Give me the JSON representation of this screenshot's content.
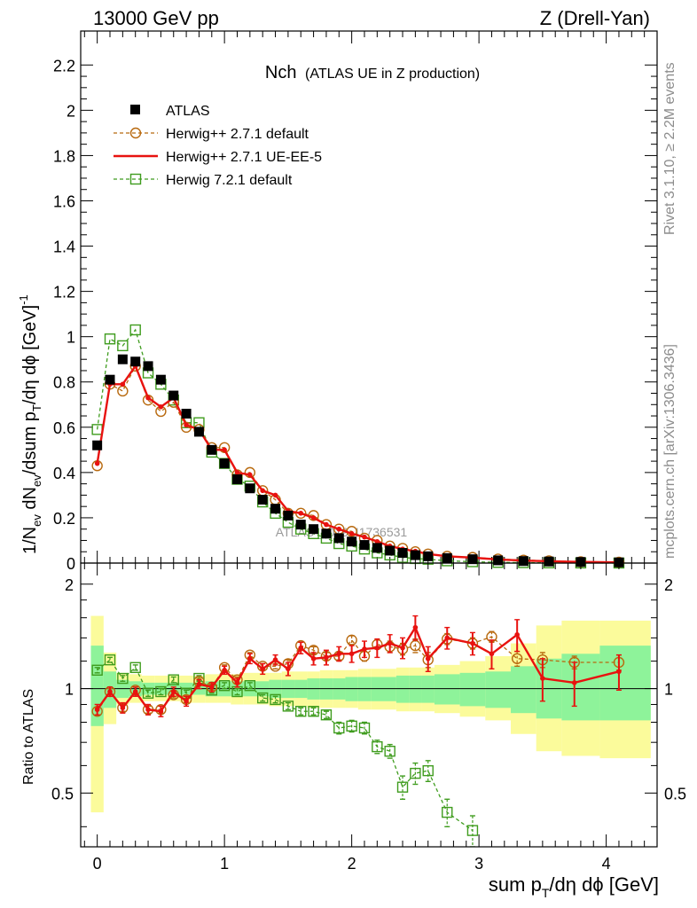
{
  "header": {
    "left": "13000 GeV pp",
    "right": "Z (Drell-Yan)"
  },
  "side_labels": {
    "rivet": "Rivet 3.1.10, ≥ 2.2M events",
    "mcplots": "mcplots.cern.ch [arXiv:1306.3436]"
  },
  "watermark": "ATLAS_2019_I1736531",
  "chart_data": [
    {
      "type": "scatter",
      "panel": "main",
      "title_main": "Nch",
      "title_sub": "(ATLAS UE in Z production)",
      "ylabel": "1/N_ev dN_ev/dsum p_T/dη dϕ [GeV]^-1",
      "xlim": [
        -0.13,
        4.4
      ],
      "ylim": [
        0,
        2.35
      ],
      "yticks": [
        0,
        0.2,
        0.4,
        0.6,
        0.8,
        1,
        1.2,
        1.4,
        1.6,
        1.8,
        2,
        2.2
      ],
      "ytick_labels": [
        "0",
        "0.2",
        "0.4",
        "0.6",
        "0.8",
        "1",
        "1.2",
        "1.4",
        "1.6",
        "1.8",
        "2",
        "2.2"
      ],
      "legend_position": "top-left",
      "series": [
        {
          "name": "ATLAS",
          "color": "#000000",
          "marker": "filled-square",
          "x": [
            0.0,
            0.1,
            0.2,
            0.3,
            0.4,
            0.5,
            0.6,
            0.7,
            0.8,
            0.9,
            1.0,
            1.1,
            1.2,
            1.3,
            1.4,
            1.5,
            1.6,
            1.7,
            1.8,
            1.9,
            2.0,
            2.1,
            2.2,
            2.3,
            2.4,
            2.5,
            2.6,
            2.75,
            2.95,
            3.15,
            3.35,
            3.55,
            3.8,
            4.1
          ],
          "y": [
            0.52,
            0.81,
            0.9,
            0.89,
            0.87,
            0.81,
            0.74,
            0.66,
            0.58,
            0.5,
            0.44,
            0.37,
            0.33,
            0.28,
            0.24,
            0.21,
            0.17,
            0.15,
            0.13,
            0.11,
            0.095,
            0.08,
            0.067,
            0.055,
            0.045,
            0.035,
            0.03,
            0.022,
            0.017,
            0.012,
            0.009,
            0.007,
            0.005,
            0.003
          ]
        },
        {
          "name": "Herwig++ 2.7.1 default",
          "color": "#b8690e",
          "marker": "open-circle",
          "line": "dashed",
          "x": [
            0.0,
            0.1,
            0.2,
            0.3,
            0.4,
            0.5,
            0.6,
            0.7,
            0.8,
            0.9,
            1.0,
            1.1,
            1.2,
            1.3,
            1.4,
            1.5,
            1.6,
            1.7,
            1.8,
            1.9,
            2.0,
            2.1,
            2.2,
            2.3,
            2.4,
            2.5,
            2.6,
            2.75,
            2.95,
            3.15,
            3.35,
            3.55,
            3.8,
            4.1
          ],
          "y": [
            0.43,
            0.79,
            0.76,
            0.87,
            0.72,
            0.67,
            0.71,
            0.6,
            0.59,
            0.51,
            0.51,
            0.39,
            0.4,
            0.32,
            0.28,
            0.22,
            0.22,
            0.21,
            0.17,
            0.15,
            0.14,
            0.11,
            0.1,
            0.075,
            0.065,
            0.05,
            0.04,
            0.03,
            0.025,
            0.018,
            0.013,
            0.01,
            0.006,
            0.004
          ]
        },
        {
          "name": "Herwig++ 2.7.1 UE-EE-5",
          "color": "#e8120f",
          "marker": "dot",
          "line": "solid",
          "x": [
            0.0,
            0.1,
            0.2,
            0.3,
            0.4,
            0.5,
            0.6,
            0.7,
            0.8,
            0.9,
            1.0,
            1.1,
            1.2,
            1.3,
            1.4,
            1.5,
            1.6,
            1.7,
            1.8,
            1.9,
            2.0,
            2.1,
            2.2,
            2.3,
            2.4,
            2.5,
            2.6,
            2.75,
            2.95,
            3.15,
            3.35,
            3.55,
            3.8,
            4.1
          ],
          "y": [
            0.44,
            0.79,
            0.79,
            0.87,
            0.73,
            0.69,
            0.73,
            0.61,
            0.59,
            0.5,
            0.5,
            0.4,
            0.39,
            0.32,
            0.3,
            0.23,
            0.22,
            0.2,
            0.17,
            0.15,
            0.13,
            0.115,
            0.095,
            0.075,
            0.062,
            0.052,
            0.04,
            0.03,
            0.024,
            0.016,
            0.011,
            0.008,
            0.005,
            0.003
          ]
        },
        {
          "name": "Herwig 7.2.1 default",
          "color": "#3f9c1e",
          "marker": "open-square",
          "line": "dashed",
          "x": [
            0.0,
            0.1,
            0.2,
            0.3,
            0.4,
            0.5,
            0.6,
            0.7,
            0.8,
            0.9,
            1.0,
            1.1,
            1.2,
            1.3,
            1.4,
            1.5,
            1.6,
            1.7,
            1.8,
            1.9,
            2.0,
            2.1,
            2.2,
            2.3,
            2.4,
            2.5,
            2.6,
            2.75,
            2.95,
            3.15,
            3.35,
            3.55,
            3.8,
            4.1
          ],
          "y": [
            0.59,
            0.99,
            0.96,
            1.03,
            0.84,
            0.79,
            0.72,
            0.62,
            0.62,
            0.49,
            0.44,
            0.37,
            0.34,
            0.27,
            0.22,
            0.18,
            0.15,
            0.13,
            0.11,
            0.086,
            0.075,
            0.062,
            0.045,
            0.036,
            0.025,
            0.02,
            0.017,
            0.01,
            0.006,
            0.003,
            0.002,
            0.001,
            0.0005,
            0.0002
          ]
        }
      ]
    },
    {
      "type": "scatter",
      "panel": "ratio",
      "ylabel": "Ratio to ATLAS",
      "xlabel": "sum p_T/dη dϕ [GeV]",
      "xlim": [
        -0.13,
        4.4
      ],
      "ylim": [
        0.35,
        2.3
      ],
      "yscale": "log",
      "yticks": [
        0.5,
        1,
        2
      ],
      "ytick_labels": [
        "0.5",
        "1",
        "2"
      ],
      "xticks": [
        0,
        1,
        2,
        3,
        4
      ],
      "xtick_labels": [
        "0",
        "1",
        "2",
        "3",
        "4"
      ],
      "bands": {
        "bin_edges": [
          -0.05,
          0.05,
          0.15,
          0.25,
          0.35,
          0.45,
          0.55,
          0.65,
          0.75,
          0.85,
          0.95,
          1.05,
          1.15,
          1.25,
          1.35,
          1.45,
          1.55,
          1.65,
          1.75,
          1.85,
          1.95,
          2.05,
          2.15,
          2.25,
          2.35,
          2.45,
          2.55,
          2.65,
          2.85,
          3.05,
          3.25,
          3.45,
          3.65,
          3.95,
          4.35
        ],
        "green_low": [
          0.78,
          0.88,
          0.94,
          0.95,
          0.96,
          0.96,
          0.96,
          0.96,
          0.96,
          0.95,
          0.95,
          0.95,
          0.95,
          0.95,
          0.94,
          0.94,
          0.94,
          0.93,
          0.93,
          0.93,
          0.92,
          0.92,
          0.92,
          0.92,
          0.91,
          0.91,
          0.91,
          0.9,
          0.89,
          0.88,
          0.85,
          0.82,
          0.81,
          0.81
        ],
        "green_high": [
          1.33,
          1.12,
          1.06,
          1.05,
          1.04,
          1.04,
          1.04,
          1.04,
          1.04,
          1.05,
          1.05,
          1.05,
          1.05,
          1.05,
          1.06,
          1.06,
          1.06,
          1.07,
          1.07,
          1.07,
          1.08,
          1.08,
          1.08,
          1.08,
          1.09,
          1.09,
          1.09,
          1.1,
          1.11,
          1.12,
          1.16,
          1.22,
          1.26,
          1.33
        ],
        "yellow_low": [
          0.44,
          0.79,
          0.9,
          0.91,
          0.92,
          0.92,
          0.92,
          0.91,
          0.91,
          0.91,
          0.91,
          0.9,
          0.9,
          0.9,
          0.89,
          0.89,
          0.89,
          0.88,
          0.88,
          0.88,
          0.88,
          0.87,
          0.87,
          0.87,
          0.86,
          0.86,
          0.86,
          0.85,
          0.83,
          0.81,
          0.74,
          0.66,
          0.64,
          0.63
        ],
        "yellow_high": [
          1.62,
          1.27,
          1.11,
          1.1,
          1.09,
          1.09,
          1.09,
          1.09,
          1.09,
          1.1,
          1.1,
          1.1,
          1.11,
          1.11,
          1.11,
          1.12,
          1.12,
          1.12,
          1.13,
          1.13,
          1.13,
          1.14,
          1.14,
          1.14,
          1.15,
          1.15,
          1.15,
          1.17,
          1.2,
          1.24,
          1.35,
          1.52,
          1.57,
          1.57
        ]
      },
      "series": [
        {
          "name": "Herwig++ 2.7.1 default",
          "color": "#b8690e",
          "marker": "open-circle",
          "line": "dashed",
          "x": [
            0.0,
            0.1,
            0.2,
            0.3,
            0.4,
            0.5,
            0.6,
            0.7,
            0.8,
            0.9,
            1.0,
            1.1,
            1.2,
            1.3,
            1.4,
            1.5,
            1.6,
            1.7,
            1.8,
            1.9,
            2.0,
            2.1,
            2.2,
            2.3,
            2.4,
            2.5,
            2.6,
            2.75,
            2.95,
            3.1,
            3.3,
            3.5,
            3.75,
            4.1
          ],
          "y": [
            0.86,
            0.98,
            0.88,
            0.99,
            0.87,
            0.87,
            0.96,
            0.93,
            1.05,
            1.01,
            1.15,
            1.06,
            1.25,
            1.16,
            1.16,
            1.18,
            1.33,
            1.29,
            1.24,
            1.24,
            1.38,
            1.24,
            1.34,
            1.32,
            1.3,
            1.33,
            1.21,
            1.39,
            1.35,
            1.41,
            1.22,
            1.21,
            1.19,
            1.19
          ],
          "yerr": [
            0.02,
            0.02,
            0.02,
            0.02,
            0.02,
            0.02,
            0.02,
            0.02,
            0.02,
            0.02,
            0.02,
            0.02,
            0.02,
            0.02,
            0.02,
            0.03,
            0.03,
            0.03,
            0.03,
            0.03,
            0.04,
            0.04,
            0.04,
            0.05,
            0.05,
            0.06,
            0.06,
            0.05,
            0.05,
            0.05,
            0.06,
            0.06,
            0.05,
            0.06
          ]
        },
        {
          "name": "Herwig++ 2.7.1 UE-EE-5",
          "color": "#e8120f",
          "marker": "dot",
          "line": "solid",
          "x": [
            0.0,
            0.1,
            0.2,
            0.3,
            0.4,
            0.5,
            0.6,
            0.7,
            0.8,
            0.9,
            1.0,
            1.1,
            1.2,
            1.3,
            1.4,
            1.5,
            1.6,
            1.7,
            1.8,
            1.9,
            2.0,
            2.1,
            2.2,
            2.3,
            2.4,
            2.5,
            2.6,
            2.75,
            2.95,
            3.1,
            3.3,
            3.5,
            3.75,
            4.1
          ],
          "y": [
            0.87,
            0.98,
            0.88,
            0.98,
            0.87,
            0.86,
            0.98,
            0.92,
            1.03,
            1.01,
            1.13,
            1.04,
            1.22,
            1.14,
            1.21,
            1.14,
            1.31,
            1.22,
            1.23,
            1.26,
            1.26,
            1.3,
            1.31,
            1.35,
            1.31,
            1.5,
            1.22,
            1.4,
            1.35,
            1.26,
            1.43,
            1.07,
            1.04,
            1.12
          ],
          "yerr": [
            0.03,
            0.03,
            0.03,
            0.03,
            0.03,
            0.03,
            0.03,
            0.03,
            0.03,
            0.03,
            0.03,
            0.03,
            0.04,
            0.04,
            0.04,
            0.05,
            0.05,
            0.05,
            0.06,
            0.06,
            0.07,
            0.07,
            0.08,
            0.08,
            0.09,
            0.12,
            0.1,
            0.1,
            0.1,
            0.12,
            0.15,
            0.15,
            0.15,
            0.13
          ]
        },
        {
          "name": "Herwig 7.2.1 default",
          "color": "#3f9c1e",
          "marker": "open-square",
          "line": "dashed",
          "x": [
            0.0,
            0.1,
            0.2,
            0.3,
            0.4,
            0.5,
            0.6,
            0.7,
            0.8,
            0.9,
            1.0,
            1.1,
            1.2,
            1.3,
            1.4,
            1.5,
            1.6,
            1.7,
            1.8,
            1.9,
            2.0,
            2.1,
            2.2,
            2.3,
            2.4,
            2.5,
            2.6,
            2.75,
            2.95
          ],
          "y": [
            1.13,
            1.21,
            1.07,
            1.15,
            0.97,
            0.98,
            1.06,
            0.97,
            1.07,
            0.99,
            1.02,
            0.98,
            1.02,
            0.94,
            0.93,
            0.89,
            0.86,
            0.86,
            0.84,
            0.77,
            0.78,
            0.77,
            0.68,
            0.66,
            0.52,
            0.57,
            0.58,
            0.44,
            0.39
          ],
          "yerr": [
            0.02,
            0.02,
            0.02,
            0.02,
            0.02,
            0.02,
            0.02,
            0.02,
            0.02,
            0.02,
            0.02,
            0.02,
            0.02,
            0.02,
            0.02,
            0.02,
            0.02,
            0.02,
            0.02,
            0.03,
            0.03,
            0.03,
            0.03,
            0.03,
            0.04,
            0.04,
            0.04,
            0.04,
            0.04
          ]
        }
      ]
    }
  ]
}
